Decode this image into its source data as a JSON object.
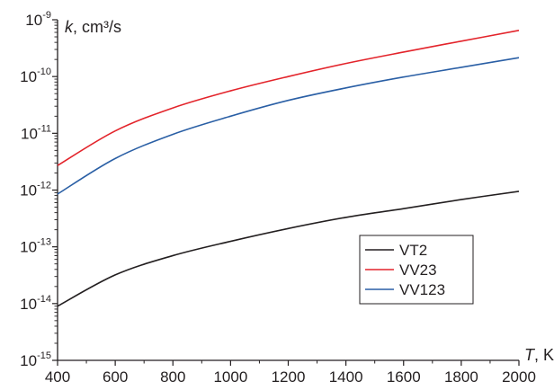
{
  "chart_data": {
    "type": "line",
    "title": "",
    "xlabel": {
      "symbol": "T",
      "unit": ", K"
    },
    "ylabel": {
      "symbol": "k",
      "unit": ", cm³/s"
    },
    "x_scale": "linear",
    "y_scale": "log",
    "xlim": [
      400,
      2000
    ],
    "ylim": [
      1e-15,
      1e-09
    ],
    "x_ticks": [
      400,
      600,
      800,
      1000,
      1200,
      1400,
      1600,
      1800,
      2000
    ],
    "x_tick_labels": [
      "400",
      "600",
      "800",
      "1000",
      "1200",
      "1400",
      "1600",
      "1800",
      "2000"
    ],
    "y_ticks": [
      {
        "value": 1e-15,
        "base": "10",
        "exp": "-15"
      },
      {
        "value": 1e-14,
        "base": "10",
        "exp": "-14"
      },
      {
        "value": 1e-13,
        "base": "10",
        "exp": "-13"
      },
      {
        "value": 1e-12,
        "base": "10",
        "exp": "-12"
      },
      {
        "value": 1e-11,
        "base": "10",
        "exp": "-11"
      },
      {
        "value": 1e-10,
        "base": "10",
        "exp": "-10"
      },
      {
        "value": 1e-09,
        "base": "10",
        "exp": "-9"
      }
    ],
    "grid": false,
    "legend_position": "lower-right",
    "x": [
      400,
      600,
      800,
      1000,
      1200,
      1400,
      1600,
      1800,
      2000
    ],
    "series": [
      {
        "name": "VT2",
        "color": "#231f20",
        "values": [
          9e-15,
          3.2e-14,
          7e-14,
          1.25e-13,
          2.1e-13,
          3.3e-13,
          4.7e-13,
          6.8e-13,
          9.5e-13
        ]
      },
      {
        "name": "VV23",
        "color": "#e3242b",
        "values": [
          2.7e-12,
          1.1e-11,
          2.8e-11,
          5.6e-11,
          1e-10,
          1.7e-10,
          2.7e-10,
          4.2e-10,
          6.5e-10
        ]
      },
      {
        "name": "VV123",
        "color": "#2a5fa5",
        "values": [
          8.5e-13,
          3.6e-12,
          9.6e-12,
          2e-11,
          3.8e-11,
          6.3e-11,
          9.8e-11,
          1.45e-10,
          2.15e-10
        ]
      }
    ]
  }
}
